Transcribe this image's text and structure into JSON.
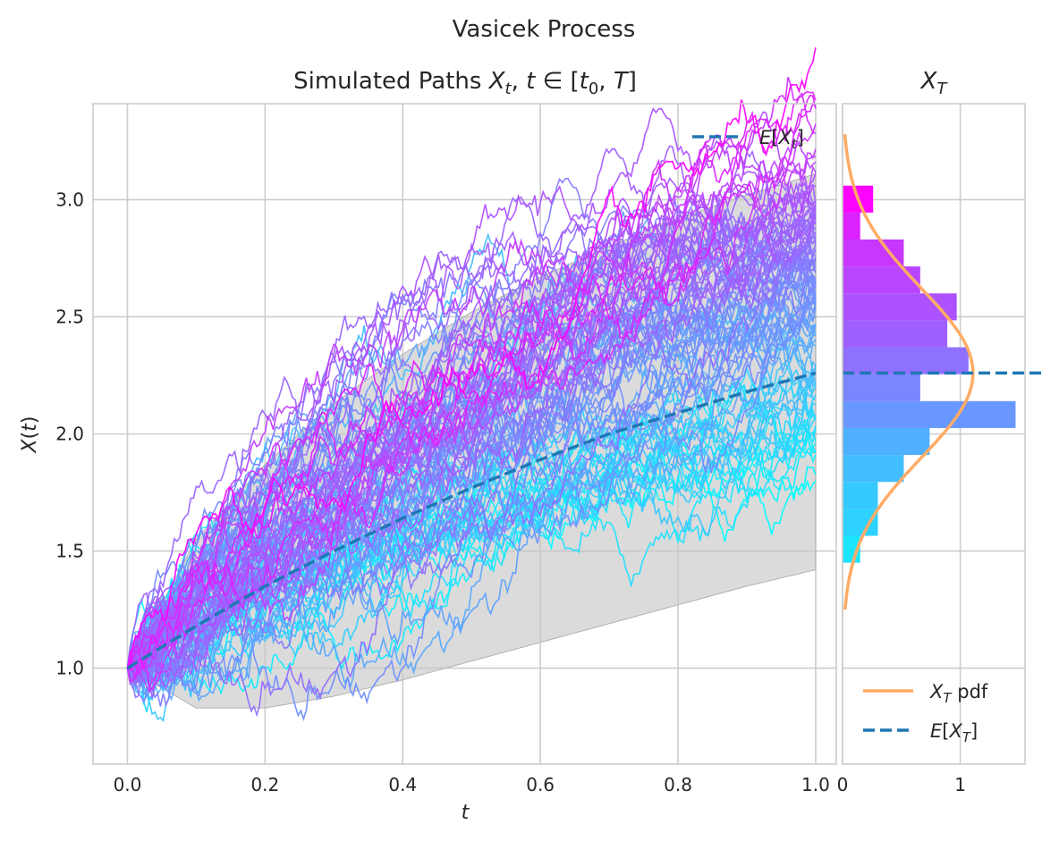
{
  "figure": {
    "suptitle": "Vasicek Process"
  },
  "chart_data": [
    {
      "type": "line",
      "title_prefix": "Simulated Paths ",
      "title_math": "X_t, t ∈ [t_0, T]",
      "xlabel": "t",
      "ylabel": "X(t)",
      "xlim": [
        -0.05,
        1.03
      ],
      "ylim": [
        0.59,
        3.41
      ],
      "xticks": [
        0.0,
        0.2,
        0.4,
        0.6,
        0.8,
        1.0
      ],
      "xtick_labels": [
        "0.0",
        "0.2",
        "0.4",
        "0.6",
        "0.8",
        "1.0"
      ],
      "yticks": [
        1.0,
        1.5,
        2.0,
        2.5,
        3.0
      ],
      "ytick_labels": [
        "1.0",
        "1.5",
        "2.0",
        "2.5",
        "3.0"
      ],
      "grid": true,
      "x0": 1.0,
      "expectation": {
        "name": "E[X_t]",
        "x": [
          0.0,
          0.1,
          0.2,
          0.3,
          0.4,
          0.5,
          0.6,
          0.7,
          0.8,
          0.9,
          1.0
        ],
        "y": [
          1.0,
          1.18,
          1.35,
          1.5,
          1.64,
          1.77,
          1.89,
          2.0,
          2.09,
          2.18,
          2.26
        ]
      },
      "confidence_band": {
        "x": [
          0.0,
          0.1,
          0.2,
          0.3,
          0.4,
          0.5,
          0.6,
          0.7,
          0.8,
          0.9,
          1.0
        ],
        "lower": [
          1.0,
          0.83,
          0.83,
          0.88,
          0.95,
          1.03,
          1.11,
          1.19,
          1.27,
          1.35,
          1.42
        ],
        "upper": [
          1.0,
          1.55,
          1.87,
          2.13,
          2.34,
          2.52,
          2.67,
          2.8,
          2.92,
          3.02,
          3.11
        ]
      },
      "paths": {
        "count": 100,
        "colormap": "cool",
        "color_start": "#00ffff",
        "color_end": "#ff00ff"
      },
      "legend": {
        "position": "upper-right",
        "entries": [
          "E[X_t]"
        ]
      },
      "colors": {
        "expectation": "#1f77b4",
        "band": "#c8c8c8"
      }
    },
    {
      "type": "bar",
      "orientation": "horizontal",
      "title_math": "X_T",
      "xlim": [
        0,
        1.55
      ],
      "xticks": [
        0,
        1
      ],
      "xtick_labels": [
        "0",
        "1"
      ],
      "bins": [
        {
          "y0": 1.45,
          "y1": 1.565,
          "value": 0.15,
          "color": "#1ae5ff"
        },
        {
          "y0": 1.565,
          "y1": 1.68,
          "value": 0.3,
          "color": "#2dd2ff"
        },
        {
          "y0": 1.68,
          "y1": 1.795,
          "value": 0.3,
          "color": "#36c9ff"
        },
        {
          "y0": 1.795,
          "y1": 1.91,
          "value": 0.52,
          "color": "#42bdff"
        },
        {
          "y0": 1.91,
          "y1": 2.025,
          "value": 0.74,
          "color": "#4fb0ff"
        },
        {
          "y0": 2.025,
          "y1": 2.14,
          "value": 1.47,
          "color": "#6897ff"
        },
        {
          "y0": 2.14,
          "y1": 2.255,
          "value": 0.66,
          "color": "#7a85ff"
        },
        {
          "y0": 2.255,
          "y1": 2.37,
          "value": 1.07,
          "color": "#8e71ff"
        },
        {
          "y0": 2.37,
          "y1": 2.485,
          "value": 0.89,
          "color": "#a05fff"
        },
        {
          "y0": 2.485,
          "y1": 2.6,
          "value": 0.97,
          "color": "#ac53ff"
        },
        {
          "y0": 2.6,
          "y1": 2.715,
          "value": 0.66,
          "color": "#b945ff"
        },
        {
          "y0": 2.715,
          "y1": 2.83,
          "value": 0.52,
          "color": "#c737ff"
        },
        {
          "y0": 2.83,
          "y1": 2.945,
          "value": 0.15,
          "color": "#dc23ff"
        },
        {
          "y0": 2.945,
          "y1": 3.06,
          "value": 0.26,
          "color": "#fc03ff"
        }
      ],
      "pdf": {
        "name": "X_T pdf",
        "mean": 2.26,
        "sd": 0.36,
        "y_range": [
          1.25,
          3.28
        ],
        "color": "#ffab66"
      },
      "mean_line": {
        "name": "E[X_T]",
        "value": 2.26,
        "color": "#1f77b4"
      },
      "legend": {
        "position": "lower-right",
        "entries": [
          "X_T pdf",
          "E[X_T]"
        ]
      }
    }
  ]
}
